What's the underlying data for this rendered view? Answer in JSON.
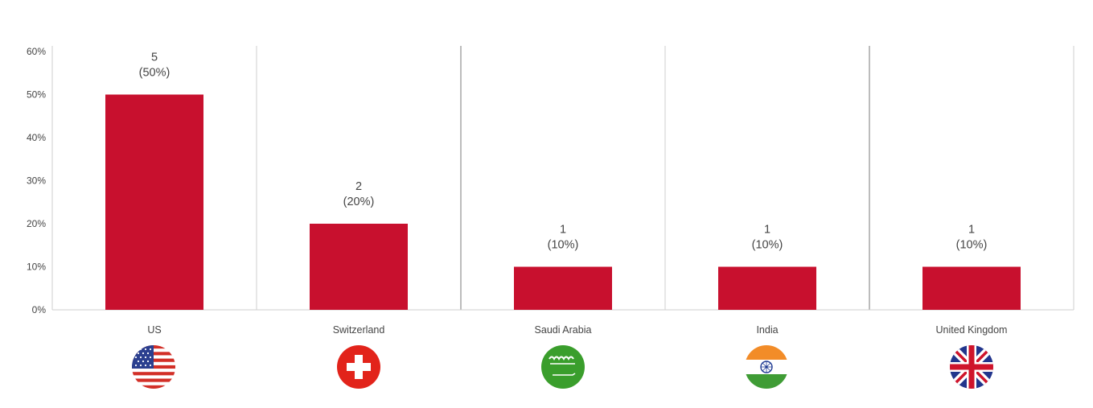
{
  "chart_data": {
    "type": "bar",
    "categories": [
      "US",
      "Switzerland",
      "Saudi Arabia",
      "India",
      "United Kingdom"
    ],
    "values": [
      50,
      20,
      10,
      10,
      10
    ],
    "counts": [
      5,
      2,
      1,
      1,
      1
    ],
    "count_labels": [
      "5",
      "2",
      "1",
      "1",
      "1"
    ],
    "percent_labels": [
      "(50%)",
      "(20%)",
      "(10%)",
      "(10%)",
      "(10%)"
    ],
    "yticks": [
      0,
      10,
      20,
      30,
      40,
      50,
      60
    ],
    "ytick_labels": [
      "0%",
      "10%",
      "20%",
      "30%",
      "40%",
      "50%",
      "60%"
    ],
    "ylim": [
      0,
      60
    ],
    "grid": false,
    "bar_color": "#c8102e",
    "flag_icons": [
      "us-flag-icon",
      "switzerland-flag-icon",
      "saudi-arabia-flag-icon",
      "india-flag-icon",
      "united-kingdom-flag-icon"
    ]
  }
}
